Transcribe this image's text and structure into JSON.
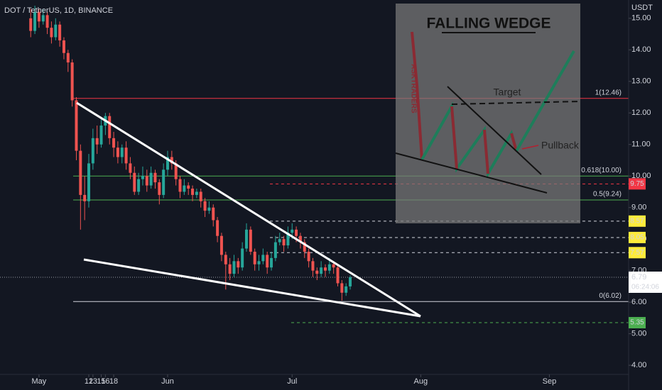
{
  "chart_data": {
    "type": "candlestick",
    "title": "DOT / TetherUS, 1D, BINANCE",
    "currency": "USDT",
    "up_color": "#26a69a",
    "down_color": "#ef5350",
    "x": [
      -2,
      -1,
      0,
      1,
      2,
      3,
      4,
      5,
      6,
      7,
      8,
      9,
      10,
      11,
      12,
      13,
      14,
      15,
      16,
      17,
      18,
      19,
      20,
      21,
      22,
      23,
      24,
      25,
      26,
      27,
      28,
      29,
      30,
      31,
      32,
      33,
      34,
      35,
      36,
      37,
      38,
      39,
      40,
      41,
      42,
      43,
      44,
      45,
      46,
      47,
      48,
      49,
      50,
      51,
      52,
      53,
      54,
      55,
      56,
      57,
      58,
      59,
      60,
      61,
      62,
      63,
      64,
      65,
      66,
      67,
      68,
      69,
      70,
      71,
      72,
      73,
      74,
      75
    ],
    "open": [
      15.0,
      14.6,
      15.2,
      14.9,
      15.1,
      14.7,
      14.4,
      14.8,
      14.3,
      13.9,
      13.6,
      12.4,
      10.8,
      9.4,
      9.2,
      10.4,
      11.2,
      11.0,
      11.6,
      11.9,
      11.2,
      10.9,
      10.6,
      10.9,
      10.4,
      10.1,
      9.5,
      9.9,
      10.0,
      9.7,
      10.1,
      9.8,
      9.4,
      10.2,
      10.6,
      10.4,
      9.9,
      9.5,
      9.7,
      9.6,
      9.4,
      9.5,
      9.2,
      8.9,
      9.0,
      8.6,
      8.1,
      7.5,
      7.2,
      6.9,
      7.3,
      7.1,
      7.7,
      8.3,
      7.6,
      7.2,
      7.3,
      7.5,
      7.1,
      7.4,
      7.9,
      8.0,
      7.8,
      8.2,
      8.3,
      8.1,
      7.9,
      7.6,
      7.3,
      7.0,
      6.9,
      7.1,
      7.0,
      7.2,
      7.1,
      6.6,
      6.3,
      6.5
    ],
    "high": [
      15.3,
      15.4,
      15.3,
      15.3,
      15.2,
      14.9,
      15.0,
      14.9,
      14.4,
      14.0,
      13.7,
      12.5,
      11.0,
      10.0,
      10.7,
      11.5,
      11.6,
      11.8,
      12.0,
      12.0,
      11.4,
      11.1,
      11.0,
      11.1,
      10.6,
      10.3,
      10.1,
      10.3,
      10.2,
      10.3,
      10.2,
      9.9,
      10.4,
      10.8,
      10.8,
      10.5,
      10.0,
      9.9,
      9.8,
      9.7,
      9.6,
      9.6,
      9.3,
      9.2,
      9.1,
      8.7,
      8.2,
      7.6,
      7.4,
      7.5,
      7.4,
      7.9,
      8.5,
      8.4,
      7.7,
      7.5,
      7.7,
      7.6,
      7.6,
      8.1,
      8.2,
      8.1,
      8.4,
      8.5,
      8.4,
      8.2,
      8.0,
      7.7,
      7.4,
      7.1,
      7.3,
      7.2,
      7.4,
      7.3,
      7.2,
      6.7,
      6.6,
      6.85
    ],
    "low": [
      14.4,
      14.5,
      14.7,
      14.8,
      14.5,
      14.2,
      14.3,
      14.1,
      13.7,
      13.3,
      12.2,
      10.5,
      8.3,
      8.6,
      9.0,
      10.2,
      10.7,
      10.9,
      11.3,
      11.0,
      10.6,
      10.4,
      10.4,
      10.2,
      9.9,
      9.4,
      9.4,
      9.7,
      9.5,
      9.6,
      9.6,
      9.1,
      9.3,
      10.0,
      10.2,
      9.7,
      9.3,
      9.4,
      9.4,
      9.2,
      9.3,
      9.0,
      8.7,
      8.8,
      8.4,
      7.9,
      7.3,
      6.4,
      6.7,
      6.8,
      6.9,
      7.0,
      7.6,
      7.5,
      7.0,
      7.0,
      7.2,
      6.9,
      7.0,
      7.3,
      7.8,
      7.6,
      7.7,
      8.0,
      7.9,
      7.7,
      7.4,
      7.1,
      6.8,
      6.7,
      6.8,
      6.8,
      6.9,
      6.9,
      6.5,
      6.05,
      6.2,
      6.4
    ],
    "close": [
      14.6,
      15.2,
      14.9,
      15.1,
      14.7,
      14.4,
      14.8,
      14.3,
      13.9,
      13.6,
      12.4,
      10.8,
      9.4,
      9.2,
      10.4,
      11.2,
      11.0,
      11.6,
      11.9,
      11.2,
      10.9,
      10.6,
      10.9,
      10.4,
      10.1,
      9.5,
      9.9,
      10.0,
      9.7,
      10.1,
      9.8,
      9.4,
      10.2,
      10.6,
      10.4,
      9.9,
      9.5,
      9.7,
      9.6,
      9.4,
      9.5,
      9.2,
      8.9,
      9.0,
      8.6,
      8.1,
      7.5,
      7.2,
      6.9,
      7.3,
      7.1,
      7.7,
      8.3,
      7.6,
      7.2,
      7.3,
      7.5,
      7.1,
      7.4,
      7.9,
      8.0,
      7.8,
      8.2,
      8.3,
      8.1,
      7.9,
      7.6,
      7.3,
      7.0,
      6.9,
      7.1,
      7.0,
      7.2,
      7.1,
      6.6,
      6.3,
      6.5,
      6.79
    ],
    "xlim": [
      -9.4,
      142.1
    ],
    "ylim": [
      3.71,
      15.58
    ],
    "xticks": [
      {
        "value": 0,
        "label": "May"
      },
      16,
      {
        "value": 31,
        "label": "Jun"
      },
      13,
      {
        "value": 61,
        "label": "Jul"
      },
      18,
      {
        "value": 92,
        "label": "Aug"
      },
      15,
      {
        "value": 123,
        "label": "Sep"
      },
      12
    ],
    "yticks": [
      {
        "value": 4,
        "label": "4.00"
      },
      {
        "value": 5,
        "label": "5.00"
      },
      {
        "value": 6,
        "label": "6.00"
      },
      {
        "value": 7,
        "label": "7.00"
      },
      {
        "value": 8,
        "label": "8.00"
      },
      {
        "value": 9,
        "label": "9.00"
      },
      {
        "value": 10,
        "label": "10.00"
      },
      {
        "value": 11,
        "label": "11.00"
      },
      {
        "value": 12,
        "label": "12.00"
      },
      {
        "value": 13,
        "label": "13.00"
      },
      {
        "value": 14,
        "label": "14.00"
      },
      {
        "value": 15,
        "label": "15.00"
      }
    ],
    "fib_levels": [
      {
        "value": 12.46,
        "label": "1(12.46)",
        "color": "#f23645"
      },
      {
        "value": 10.0,
        "label": "0.618(10.00)",
        "color": "#4caf50"
      },
      {
        "value": 9.24,
        "label": "0.5(9.24)",
        "color": "#4caf50"
      },
      {
        "value": 6.02,
        "label": "0(6.02)",
        "color": "#d1d4dc"
      }
    ],
    "price_tags": [
      {
        "value": 9.75,
        "color": "#f23645",
        "text_color": "#ffffff"
      },
      {
        "value": 8.57,
        "color": "#ffeb3b",
        "text_color": "#131722"
      },
      {
        "value": 8.05,
        "color": "#ffeb3b",
        "text_color": "#131722"
      },
      {
        "value": 7.57,
        "color": "#ffeb3b",
        "text_color": "#131722"
      },
      {
        "value": 5.35,
        "color": "#4caf50",
        "text_color": "#131722"
      }
    ],
    "last_price": 6.79,
    "countdown": "06:24:06",
    "inset": {
      "title": "FALLING WEDGE",
      "brand": "ASKTRADERS",
      "target": "Target",
      "pullback": "Pullback"
    }
  }
}
